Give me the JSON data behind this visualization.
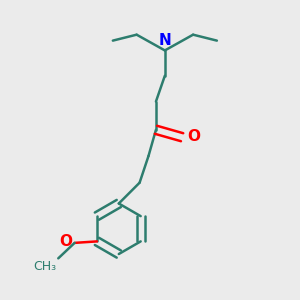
{
  "bg_color": "#ebebeb",
  "bond_color": "#2d7d6e",
  "N_color": "#0000ff",
  "O_color": "#ff0000",
  "bond_width": 1.8,
  "fig_width": 3.0,
  "fig_height": 3.0,
  "dpi": 100,
  "label_N": "N",
  "label_O_carbonyl": "O",
  "label_O_methoxy": "O",
  "font_size": 11
}
